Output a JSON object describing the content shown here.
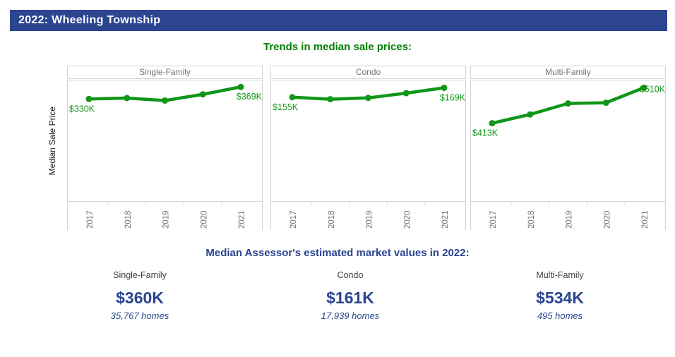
{
  "header": {
    "title": "2022: Wheeling Township"
  },
  "sections": {
    "trends_title": "Trends in median sale prices:",
    "assessor_title": "Median Assessor's estimated market values in 2022:"
  },
  "y_axis_label": "Median Sale Price",
  "colors": {
    "line_green": "#109618",
    "title_green": "#008000",
    "navy": "#2B4590",
    "panel_border": "#d4d4d4",
    "axis_text_gray": "#757575"
  },
  "chart_data": [
    {
      "type": "line",
      "title": "Single-Family",
      "x": [
        "2017",
        "2018",
        "2019",
        "2020",
        "2021"
      ],
      "values": [
        330,
        333,
        325,
        345,
        369
      ],
      "units": "thousand USD",
      "ylim": [
        0,
        390
      ],
      "first_label": "$330K",
      "last_label": "$369K",
      "last_label_dy": 18,
      "xlabel": "",
      "ylabel": "Median Sale Price",
      "grid": false,
      "legend": false
    },
    {
      "type": "line",
      "title": "Condo",
      "x": [
        "2017",
        "2018",
        "2019",
        "2020",
        "2021"
      ],
      "values": [
        155,
        152,
        154,
        161,
        169
      ],
      "units": "thousand USD",
      "ylim": [
        0,
        180
      ],
      "first_label": "$155K",
      "last_label": "$169K",
      "last_label_dy": 18,
      "xlabel": "",
      "ylabel": "Median Sale Price",
      "grid": false,
      "legend": false
    },
    {
      "type": "line",
      "title": "Multi-Family",
      "x": [
        "2017",
        "2018",
        "2019",
        "2020",
        "2021"
      ],
      "values": [
        413,
        437,
        467,
        469,
        510
      ],
      "units": "thousand USD",
      "ylim": [
        200,
        530
      ],
      "first_label": "$413K",
      "last_label": "$510K",
      "last_label_dy": 6,
      "xlabel": "",
      "ylabel": "Median Sale Price",
      "grid": false,
      "legend": false
    }
  ],
  "assessor_values": [
    {
      "category": "Single-Family",
      "value": "$360K",
      "homes": "35,767 homes"
    },
    {
      "category": "Condo",
      "value": "$161K",
      "homes": "17,939 homes"
    },
    {
      "category": "Multi-Family",
      "value": "$534K",
      "homes": "495 homes"
    }
  ]
}
